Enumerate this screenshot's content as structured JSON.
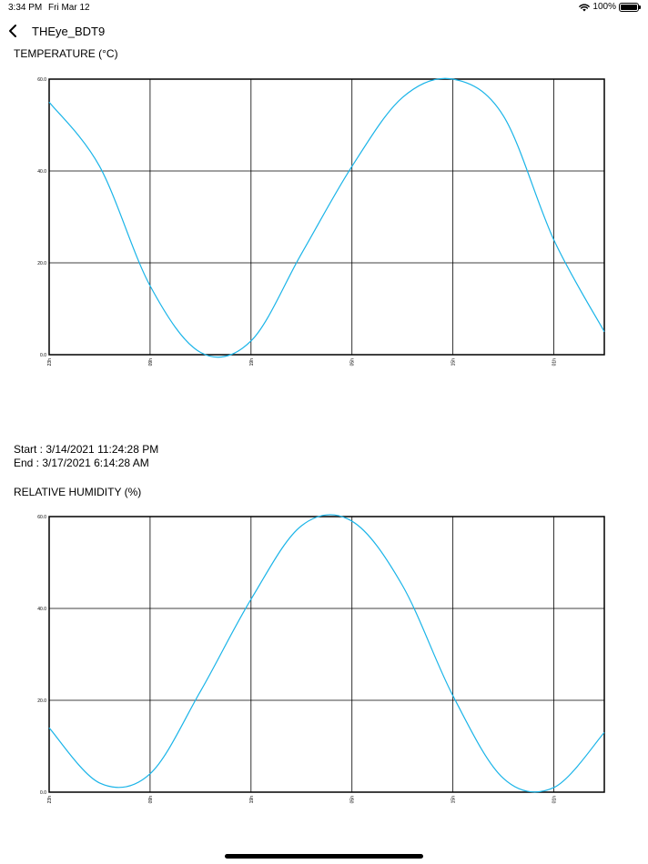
{
  "status_bar": {
    "time": "3:34 PM",
    "date": "Fri Mar 12",
    "battery": "100%"
  },
  "nav": {
    "title": "THEye_BDT9"
  },
  "temperature": {
    "title": "TEMPERATURE (°C)",
    "chart_data": {
      "type": "line",
      "title": "",
      "xlabel": "",
      "ylabel": "",
      "ylim": [
        0,
        60
      ],
      "yticks": [
        "0.0",
        "20.0",
        "40.0",
        "60.0"
      ],
      "xticks": [
        "23h",
        "09h",
        "19h",
        "05h",
        "15h",
        "01h"
      ],
      "grid": true,
      "series": [
        {
          "color": "#1ab4e8",
          "x": [
            0,
            0.5,
            1,
            1.5,
            2,
            2.5,
            3,
            3.5,
            4,
            4.5,
            5,
            5.5
          ],
          "y": [
            55,
            41,
            15,
            0.5,
            3,
            22,
            41,
            56,
            60,
            52,
            25,
            5
          ]
        }
      ]
    }
  },
  "range": {
    "start": "Start : 3/14/2021 11:24:28 PM",
    "end": "End : 3/17/2021 6:14:28 AM"
  },
  "humidity": {
    "title": "RELATIVE HUMIDITY (%)",
    "chart_data": {
      "type": "line",
      "title": "",
      "xlabel": "",
      "ylabel": "",
      "ylim": [
        0,
        60
      ],
      "yticks": [
        "0.0",
        "20.0",
        "40.0",
        "60.0"
      ],
      "xticks": [
        "23h",
        "09h",
        "19h",
        "05h",
        "15h",
        "01h"
      ],
      "grid": true,
      "series": [
        {
          "color": "#1ab4e8",
          "x": [
            0,
            0.5,
            1,
            1.5,
            2,
            2.5,
            3,
            3.5,
            4,
            4.5,
            5,
            5.5
          ],
          "y": [
            14,
            2,
            4,
            22,
            42,
            58,
            59,
            45,
            21,
            3,
            1,
            13
          ]
        }
      ]
    }
  }
}
